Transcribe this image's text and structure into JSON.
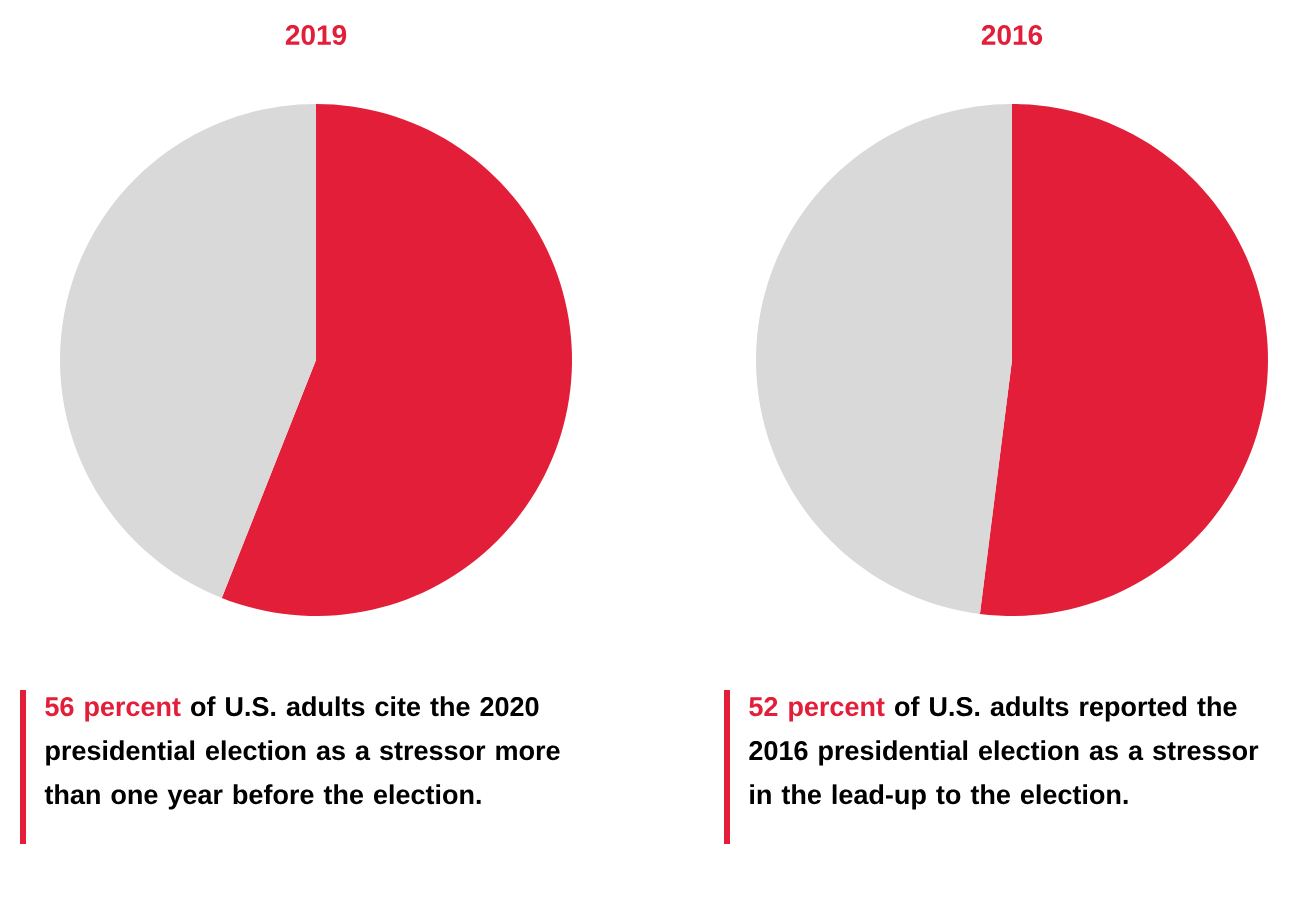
{
  "chart_data": [
    {
      "type": "pie",
      "title": "2019",
      "categories": [
        null,
        null
      ],
      "values": [
        56,
        44
      ],
      "colors": [
        "#e31e39",
        "#d9d9d9"
      ],
      "annotations": [
        "56 percent",
        "of U.S. adults cite the 2020 presidential election as a stressor more than one year before the election."
      ]
    },
    {
      "type": "pie",
      "title": "2016",
      "categories": [
        null,
        null
      ],
      "values": [
        52,
        48
      ],
      "colors": [
        "#e31e39",
        "#d9d9d9"
      ],
      "annotations": [
        "52 percent",
        "of U.S. adults reported the 2016 presidential election as a stressor in the lead-up to the election."
      ]
    }
  ]
}
